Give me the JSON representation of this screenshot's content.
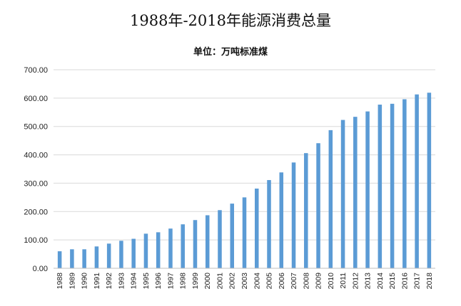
{
  "chart_data": {
    "type": "bar",
    "title": "1988年-2018年能源消费总量",
    "subtitle": "单位：万吨标准煤",
    "xlabel": "",
    "ylabel": "",
    "ylim": [
      0,
      700
    ],
    "yticks": [
      "0.00",
      "100.00",
      "200.00",
      "300.00",
      "400.00",
      "500.00",
      "600.00",
      "700.00"
    ],
    "grid": true,
    "legend": "none",
    "bar_color": "#5b9bd5",
    "categories": [
      "1988",
      "1989",
      "1990",
      "1991",
      "1992",
      "1993",
      "1994",
      "1995",
      "1996",
      "1997",
      "1998",
      "1999",
      "2000",
      "2001",
      "2002",
      "2003",
      "2004",
      "2005",
      "2006",
      "2007",
      "2008",
      "2009",
      "2010",
      "2011",
      "2012",
      "2013",
      "2014",
      "2015",
      "2016",
      "2017",
      "2018"
    ],
    "values": [
      60,
      67,
      67,
      77,
      87,
      97,
      104,
      122,
      127,
      140,
      155,
      170,
      187,
      205,
      228,
      250,
      281,
      311,
      338,
      373,
      406,
      441,
      487,
      523,
      534,
      553,
      577,
      580,
      596,
      613,
      619
    ]
  }
}
